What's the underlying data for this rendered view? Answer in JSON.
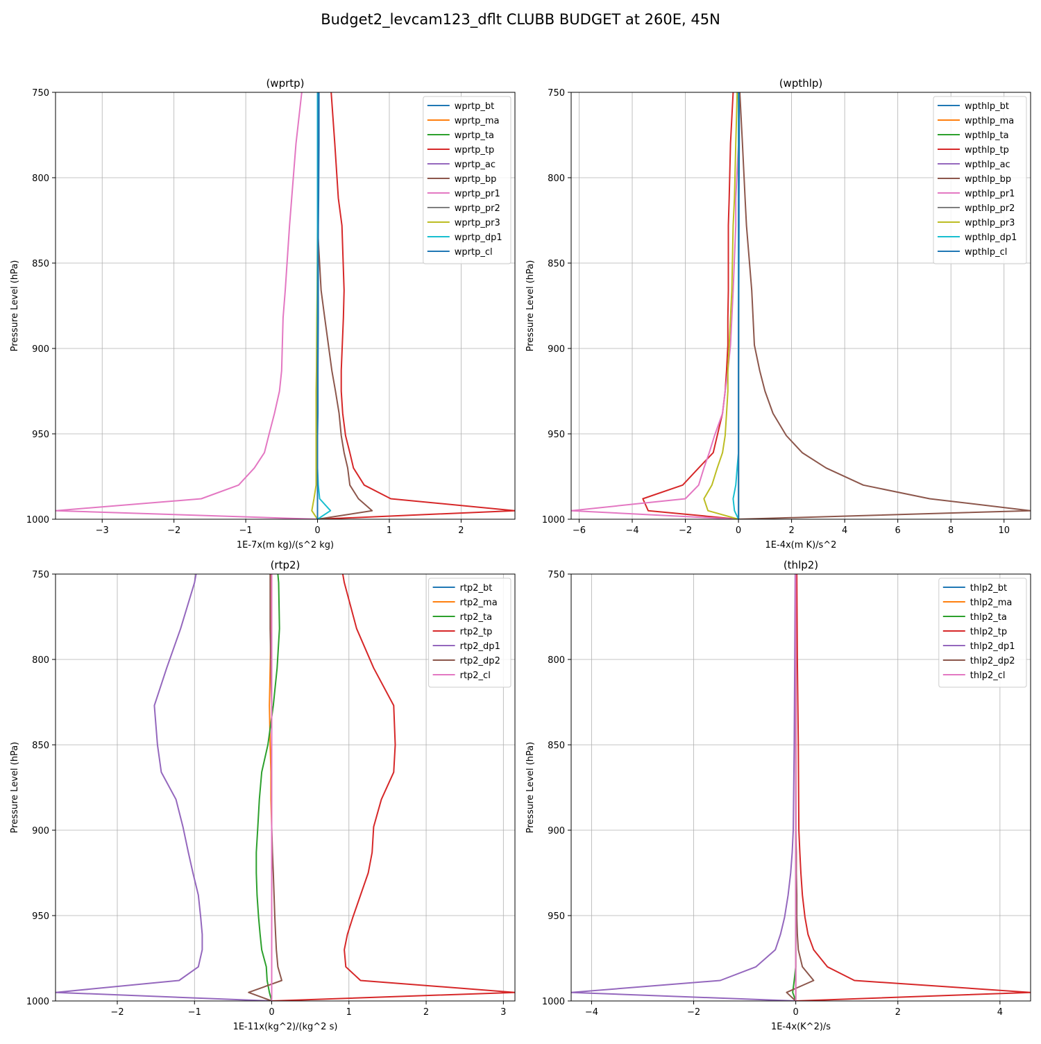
{
  "figure": {
    "title": "Budget2_levcam123_dflt CLUBB BUDGET at 260E, 45N"
  },
  "colors": [
    "#1f77b4",
    "#ff7f0e",
    "#2ca02c",
    "#d62728",
    "#9467bd",
    "#8c564b",
    "#e377c2",
    "#7f7f7f",
    "#bcbd22",
    "#17becf",
    "#1f77b4"
  ],
  "chart_data": [
    {
      "type": "line",
      "title": "(wprtp)",
      "xlabel": "1E-7x(m kg)/(s^2 kg)",
      "ylabel": "Pressure Level (hPa)",
      "xlim": [
        -3.65,
        2.75
      ],
      "ylim": [
        1000,
        750
      ],
      "xticks": [
        -3,
        -2,
        -1,
        0,
        1,
        2
      ],
      "yticks": [
        750,
        800,
        850,
        900,
        950,
        1000
      ],
      "grid": true,
      "legend_position": "top-right",
      "y": [
        750,
        780,
        812,
        828,
        866,
        882,
        913,
        925,
        938,
        951,
        961,
        970,
        980,
        988,
        995,
        1000
      ],
      "series": [
        {
          "name": "wprtp_bt",
          "values": [
            0.02,
            0.02,
            0.015,
            0.01,
            0.01,
            0.01,
            0.005,
            0.005,
            0.005,
            0.0,
            0.0,
            0.0,
            0.0,
            0.0,
            0.0,
            0.0
          ]
        },
        {
          "name": "wprtp_ma",
          "values": [
            0.0,
            0.0,
            0.0,
            0.0,
            0.0,
            0.0,
            0.0,
            0.0,
            0.0,
            0.0,
            0.0,
            0.0,
            0.0,
            0.0,
            0.0,
            0.0
          ]
        },
        {
          "name": "wprtp_ta",
          "values": [
            0.0,
            0.0,
            0.0,
            0.0,
            0.0,
            0.0,
            0.0,
            0.0,
            0.0,
            0.0,
            0.0,
            0.0,
            0.0,
            0.0,
            0.0,
            0.0
          ]
        },
        {
          "name": "wprtp_tp",
          "values": [
            0.19,
            0.24,
            0.29,
            0.34,
            0.37,
            0.36,
            0.33,
            0.33,
            0.35,
            0.39,
            0.45,
            0.5,
            0.65,
            1.02,
            2.75,
            0.0
          ]
        },
        {
          "name": "wprtp_ac",
          "values": [
            0.0,
            0.0,
            0.0,
            0.0,
            0.0,
            0.0,
            0.0,
            0.0,
            0.0,
            0.0,
            0.0,
            0.0,
            0.0,
            0.0,
            0.0,
            0.0
          ]
        },
        {
          "name": "wprtp_bp",
          "values": [
            0.0,
            0.0,
            0.0,
            0.0,
            0.05,
            0.1,
            0.2,
            0.25,
            0.3,
            0.33,
            0.37,
            0.42,
            0.45,
            0.57,
            0.76,
            0.0
          ]
        },
        {
          "name": "wprtp_pr1",
          "values": [
            -0.22,
            -0.3,
            -0.36,
            -0.39,
            -0.45,
            -0.48,
            -0.5,
            -0.53,
            -0.6,
            -0.68,
            -0.74,
            -0.88,
            -1.1,
            -1.62,
            -3.65,
            0.0
          ]
        },
        {
          "name": "wprtp_pr2",
          "values": [
            0.0,
            0.0,
            0.0,
            0.0,
            0.0,
            0.0,
            0.0,
            0.0,
            0.0,
            0.0,
            0.0,
            0.0,
            0.0,
            0.0,
            0.0,
            0.0
          ]
        },
        {
          "name": "wprtp_pr3",
          "values": [
            0.0,
            0.0,
            0.0,
            0.0,
            -0.005,
            -0.01,
            -0.015,
            -0.02,
            -0.02,
            -0.02,
            -0.02,
            -0.02,
            -0.02,
            -0.05,
            -0.08,
            0.0
          ]
        },
        {
          "name": "wprtp_dp1",
          "values": [
            0.0,
            0.0,
            0.0,
            0.0,
            0.0,
            0.0,
            0.0,
            0.0,
            0.0,
            0.0,
            0.0,
            0.0,
            0.01,
            0.03,
            0.18,
            0.0
          ]
        },
        {
          "name": "wprtp_cl",
          "values": [
            0.01,
            0.01,
            0.01,
            0.01,
            0.005,
            0.005,
            0.0,
            0.0,
            0.0,
            0.0,
            0.0,
            0.0,
            0.0,
            0.0,
            0.0,
            0.0
          ]
        }
      ]
    },
    {
      "type": "line",
      "title": "(wpthlp)",
      "xlabel": "1E-4x(m K)/s^2",
      "ylabel": "Pressure Level (hPa)",
      "xlim": [
        -6.3,
        11.0
      ],
      "ylim": [
        1000,
        750
      ],
      "xticks": [
        -6,
        -4,
        -2,
        0,
        2,
        4,
        6,
        8,
        10
      ],
      "yticks": [
        750,
        800,
        850,
        900,
        950,
        1000
      ],
      "grid": true,
      "legend_position": "top-right",
      "y": [
        750,
        780,
        812,
        828,
        866,
        882,
        898,
        913,
        925,
        938,
        951,
        961,
        970,
        980,
        988,
        995,
        1000
      ],
      "series": [
        {
          "name": "wpthlp_bt",
          "values": [
            0.03,
            0.03,
            0.02,
            0.02,
            0.01,
            0.01,
            0.01,
            0.0,
            0.0,
            0.0,
            0.0,
            0.0,
            0.0,
            0.0,
            0.0,
            0.0,
            0.0
          ]
        },
        {
          "name": "wpthlp_ma",
          "values": [
            0.0,
            0.0,
            0.0,
            0.0,
            0.0,
            0.0,
            0.0,
            0.0,
            0.0,
            0.0,
            0.0,
            0.0,
            0.0,
            0.0,
            0.0,
            0.0,
            0.0
          ]
        },
        {
          "name": "wpthlp_ta",
          "values": [
            0.0,
            0.0,
            0.0,
            0.0,
            0.0,
            0.0,
            0.0,
            0.0,
            0.0,
            0.0,
            0.0,
            0.0,
            0.0,
            0.0,
            0.0,
            0.0,
            0.0
          ]
        },
        {
          "name": "wpthlp_tp",
          "values": [
            -0.2,
            -0.3,
            -0.35,
            -0.38,
            -0.38,
            -0.4,
            -0.4,
            -0.45,
            -0.5,
            -0.6,
            -0.8,
            -0.95,
            -1.5,
            -2.1,
            -3.6,
            -3.4,
            0.0
          ]
        },
        {
          "name": "wpthlp_ac",
          "values": [
            0.0,
            0.0,
            0.0,
            0.0,
            0.0,
            0.0,
            0.0,
            0.0,
            0.0,
            0.0,
            0.0,
            0.0,
            0.0,
            0.0,
            0.0,
            0.0,
            0.0
          ]
        },
        {
          "name": "wpthlp_bp",
          "values": [
            0.05,
            0.15,
            0.25,
            0.3,
            0.5,
            0.55,
            0.6,
            0.8,
            1.0,
            1.3,
            1.8,
            2.4,
            3.3,
            4.7,
            7.2,
            11.0,
            0.0
          ]
        },
        {
          "name": "wpthlp_pr1",
          "values": [
            0.0,
            0.0,
            -0.1,
            -0.1,
            -0.2,
            -0.25,
            -0.3,
            -0.4,
            -0.5,
            -0.6,
            -0.9,
            -1.1,
            -1.3,
            -1.5,
            -2.0,
            -6.3,
            0.0
          ]
        },
        {
          "name": "wpthlp_pr2",
          "values": [
            0.0,
            0.0,
            0.0,
            0.0,
            0.0,
            0.0,
            0.0,
            0.0,
            0.0,
            0.0,
            0.0,
            0.0,
            0.0,
            0.0,
            0.0,
            0.0,
            0.0
          ]
        },
        {
          "name": "wpthlp_pr3",
          "values": [
            -0.05,
            -0.1,
            -0.15,
            -0.2,
            -0.25,
            -0.3,
            -0.35,
            -0.4,
            -0.4,
            -0.45,
            -0.5,
            -0.6,
            -0.8,
            -1.0,
            -1.3,
            -1.15,
            0.0
          ]
        },
        {
          "name": "wpthlp_dp1",
          "values": [
            0.0,
            0.0,
            0.0,
            0.0,
            0.0,
            0.0,
            0.0,
            0.0,
            0.0,
            0.0,
            0.0,
            0.0,
            -0.05,
            -0.1,
            -0.2,
            -0.15,
            0.0
          ]
        },
        {
          "name": "wpthlp_cl",
          "values": [
            0.02,
            0.02,
            0.01,
            0.01,
            0.01,
            0.0,
            0.0,
            0.0,
            0.0,
            0.0,
            0.0,
            0.0,
            0.0,
            0.0,
            0.0,
            0.0,
            0.0
          ]
        }
      ]
    },
    {
      "type": "line",
      "title": "(rtp2)",
      "xlabel": "1E-11x(kg^2)/(kg^2 s)",
      "ylabel": "Pressure Level (hPa)",
      "xlim": [
        -2.8,
        3.15
      ],
      "ylim": [
        1000,
        750
      ],
      "xticks": [
        -2,
        -1,
        0,
        1,
        2,
        3
      ],
      "yticks": [
        750,
        800,
        850,
        900,
        950,
        1000
      ],
      "grid": true,
      "legend_position": "top-right",
      "y": [
        750,
        755,
        782,
        805,
        827,
        850,
        866,
        882,
        898,
        913,
        925,
        938,
        951,
        961,
        970,
        980,
        988,
        995,
        1000
      ],
      "series": [
        {
          "name": "rtp2_bt",
          "values": [
            0.0,
            0.0,
            0.0,
            0.0,
            0.0,
            0.0,
            0.0,
            0.0,
            0.0,
            0.0,
            0.0,
            0.0,
            0.0,
            0.0,
            0.0,
            0.0,
            0.0,
            0.0,
            0.0
          ]
        },
        {
          "name": "rtp2_ma",
          "values": [
            -0.01,
            -0.01,
            -0.01,
            -0.02,
            -0.03,
            -0.02,
            -0.01,
            -0.01,
            0.0,
            0.0,
            0.0,
            0.0,
            0.0,
            0.0,
            0.0,
            0.0,
            0.0,
            0.0,
            0.0
          ]
        },
        {
          "name": "rtp2_ta",
          "values": [
            0.08,
            0.09,
            0.1,
            0.07,
            0.02,
            -0.05,
            -0.13,
            -0.16,
            -0.18,
            -0.2,
            -0.2,
            -0.19,
            -0.17,
            -0.15,
            -0.13,
            -0.07,
            -0.06,
            -0.03,
            0.0
          ]
        },
        {
          "name": "rtp2_tp",
          "values": [
            0.92,
            0.94,
            1.1,
            1.32,
            1.58,
            1.6,
            1.58,
            1.42,
            1.32,
            1.3,
            1.25,
            1.15,
            1.05,
            0.98,
            0.94,
            0.96,
            1.15,
            3.15,
            0.0
          ]
        },
        {
          "name": "rtp2_dp1",
          "values": [
            -0.98,
            -1.0,
            -1.18,
            -1.36,
            -1.52,
            -1.48,
            -1.43,
            -1.24,
            -1.15,
            -1.08,
            -1.02,
            -0.95,
            -0.92,
            -0.9,
            -0.9,
            -0.95,
            -1.2,
            -2.8,
            0.0
          ]
        },
        {
          "name": "rtp2_dp2",
          "values": [
            -0.02,
            -0.02,
            -0.02,
            -0.01,
            0.0,
            0.0,
            0.0,
            0.0,
            0.0,
            0.01,
            0.02,
            0.03,
            0.04,
            0.05,
            0.06,
            0.08,
            0.13,
            -0.3,
            0.0
          ]
        },
        {
          "name": "rtp2_cl",
          "values": [
            0.0,
            0.0,
            0.0,
            0.0,
            0.0,
            0.0,
            0.0,
            0.0,
            0.0,
            0.0,
            0.0,
            0.0,
            0.0,
            0.0,
            0.0,
            0.0,
            0.0,
            0.0,
            0.0
          ]
        }
      ]
    },
    {
      "type": "line",
      "title": "(thlp2)",
      "xlabel": "1E-4x(K^2)/s",
      "ylabel": "Pressure Level (hPa)",
      "xlim": [
        -4.4,
        4.6
      ],
      "ylim": [
        1000,
        750
      ],
      "xticks": [
        -4,
        -2,
        0,
        2,
        4
      ],
      "yticks": [
        750,
        800,
        850,
        900,
        950,
        1000
      ],
      "grid": true,
      "legend_position": "top-right",
      "y": [
        750,
        800,
        850,
        900,
        913,
        925,
        938,
        951,
        961,
        970,
        980,
        988,
        995,
        1000
      ],
      "series": [
        {
          "name": "thlp2_bt",
          "values": [
            0.0,
            0.0,
            0.0,
            0.0,
            0.0,
            0.0,
            0.0,
            0.0,
            0.0,
            0.0,
            0.0,
            0.0,
            0.0,
            0.0
          ]
        },
        {
          "name": "thlp2_ma",
          "values": [
            0.0,
            0.0,
            0.0,
            0.0,
            0.0,
            0.0,
            0.0,
            0.0,
            0.0,
            0.0,
            0.0,
            0.0,
            0.0,
            0.0
          ]
        },
        {
          "name": "thlp2_ta",
          "values": [
            0.0,
            0.0,
            0.0,
            0.0,
            0.0,
            0.0,
            0.0,
            0.0,
            0.0,
            0.0,
            0.0,
            -0.03,
            -0.06,
            0.0
          ]
        },
        {
          "name": "thlp2_tp",
          "values": [
            0.02,
            0.03,
            0.05,
            0.06,
            0.08,
            0.1,
            0.13,
            0.18,
            0.24,
            0.35,
            0.62,
            1.15,
            4.6,
            0.0
          ]
        },
        {
          "name": "thlp2_dp1",
          "values": [
            -0.01,
            -0.02,
            -0.03,
            -0.05,
            -0.07,
            -0.1,
            -0.15,
            -0.22,
            -0.3,
            -0.4,
            -0.78,
            -1.48,
            -4.4,
            0.0
          ]
        },
        {
          "name": "thlp2_dp2",
          "values": [
            0.0,
            0.0,
            0.0,
            0.0,
            0.01,
            0.01,
            0.02,
            0.02,
            0.03,
            0.05,
            0.13,
            0.35,
            -0.18,
            0.0
          ]
        },
        {
          "name": "thlp2_cl",
          "values": [
            0.0,
            0.0,
            0.0,
            0.0,
            0.0,
            0.0,
            0.0,
            0.0,
            0.0,
            0.0,
            0.0,
            0.0,
            0.0,
            0.0
          ]
        }
      ]
    }
  ]
}
